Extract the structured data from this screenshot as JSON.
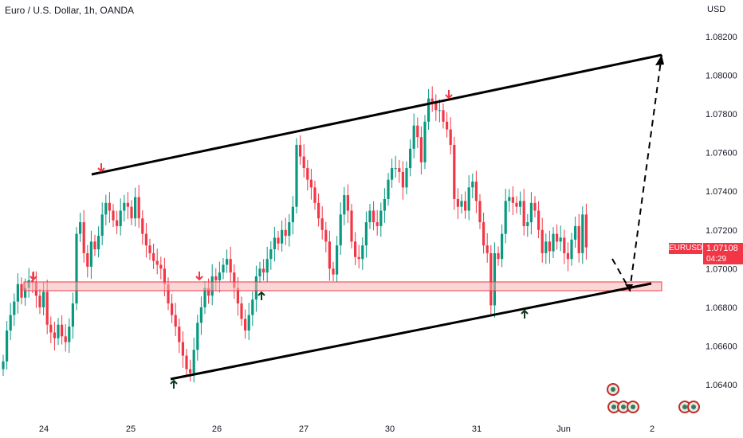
{
  "header": {
    "title": "Euro / U.S. Dollar, 1h, OANDA",
    "currency": "USD"
  },
  "price_tag": {
    "symbol": "EURUSD",
    "price": "1.07108",
    "countdown": "04:29"
  },
  "colors": {
    "up": "#089981",
    "down": "#f23645",
    "trendline": "#000000",
    "zone_fill": "#f8b4b4",
    "zone_border": "#f23645",
    "down_arrow": "#f23645",
    "up_arrow": "#0d3b1e"
  },
  "chart_data": {
    "type": "candlestick",
    "symbol": "EURUSD",
    "interval": "1h",
    "ylim": [
      1.0635,
      1.0825
    ],
    "yticks": [
      "1.08200",
      "1.08000",
      "1.07800",
      "1.07600",
      "1.07400",
      "1.07200",
      "1.07000",
      "1.06800",
      "1.06600",
      "1.06400"
    ],
    "xticks": [
      "24",
      "25",
      "26",
      "27",
      "30",
      "31",
      "Jun",
      "2"
    ],
    "grid": false,
    "last_price": 1.07108,
    "closes": [
      1.0652,
      1.0668,
      1.0676,
      1.0683,
      1.0692,
      1.0685,
      1.069,
      1.0694,
      1.0693,
      1.0686,
      1.068,
      1.0688,
      1.0671,
      1.0667,
      1.0664,
      1.0671,
      1.0665,
      1.0662,
      1.067,
      1.0682,
      1.0718,
      1.0724,
      1.0708,
      1.0701,
      1.0714,
      1.071,
      1.0717,
      1.0728,
      1.0734,
      1.073,
      1.0725,
      1.0722,
      1.073,
      1.0734,
      1.0732,
      1.0726,
      1.0737,
      1.0726,
      1.0718,
      1.0712,
      1.0708,
      1.0704,
      1.0702,
      1.07,
      1.0692,
      1.0682,
      1.0676,
      1.067,
      1.0662,
      1.0655,
      1.0648,
      1.0646,
      1.0658,
      1.0672,
      1.068,
      1.069,
      1.0686,
      1.0696,
      1.0694,
      1.0698,
      1.0702,
      1.0705,
      1.0698,
      1.069,
      1.0682,
      1.0674,
      1.0668,
      1.0676,
      1.0684,
      1.0696,
      1.07,
      1.0698,
      1.0705,
      1.071,
      1.0716,
      1.0713,
      1.072,
      1.0717,
      1.0724,
      1.0732,
      1.0764,
      1.0758,
      1.0752,
      1.0746,
      1.0742,
      1.0734,
      1.0726,
      1.072,
      1.0714,
      1.07,
      1.0697,
      1.0712,
      1.0728,
      1.0738,
      1.073,
      1.0714,
      1.0706,
      1.0705,
      1.0712,
      1.0724,
      1.073,
      1.0724,
      1.0722,
      1.073,
      1.0736,
      1.0746,
      1.0752,
      1.0752,
      1.075,
      1.0742,
      1.0752,
      1.0762,
      1.0774,
      1.0768,
      1.0755,
      1.0776,
      1.0788,
      1.0786,
      1.0782,
      1.0782,
      1.0776,
      1.0772,
      1.0764,
      1.0736,
      1.0732,
      1.0735,
      1.073,
      1.0742,
      1.0745,
      1.0735,
      1.0724,
      1.0712,
      1.0708,
      1.0681,
      1.0708,
      1.0705,
      1.0718,
      1.0735,
      1.0737,
      1.0734,
      1.0732,
      1.0735,
      1.0722,
      1.0724,
      1.0734,
      1.073,
      1.072,
      1.0708,
      1.0714,
      1.0709,
      1.0718,
      1.0714,
      1.0716,
      1.0708,
      1.0705,
      1.0715,
      1.0722,
      1.0708,
      1.0728,
      1.0711
    ],
    "annotations": {
      "upper_channel": [
        [
          24.8,
          1.0757
        ],
        [
          34.0,
          1.0812
        ]
      ],
      "lower_channel": [
        [
          25.4,
          1.0644
        ],
        [
          33.2,
          1.0692
        ]
      ],
      "support_zone": [
        1.0691,
        1.0693
      ],
      "projection": "dashed path to upper channel"
    }
  }
}
